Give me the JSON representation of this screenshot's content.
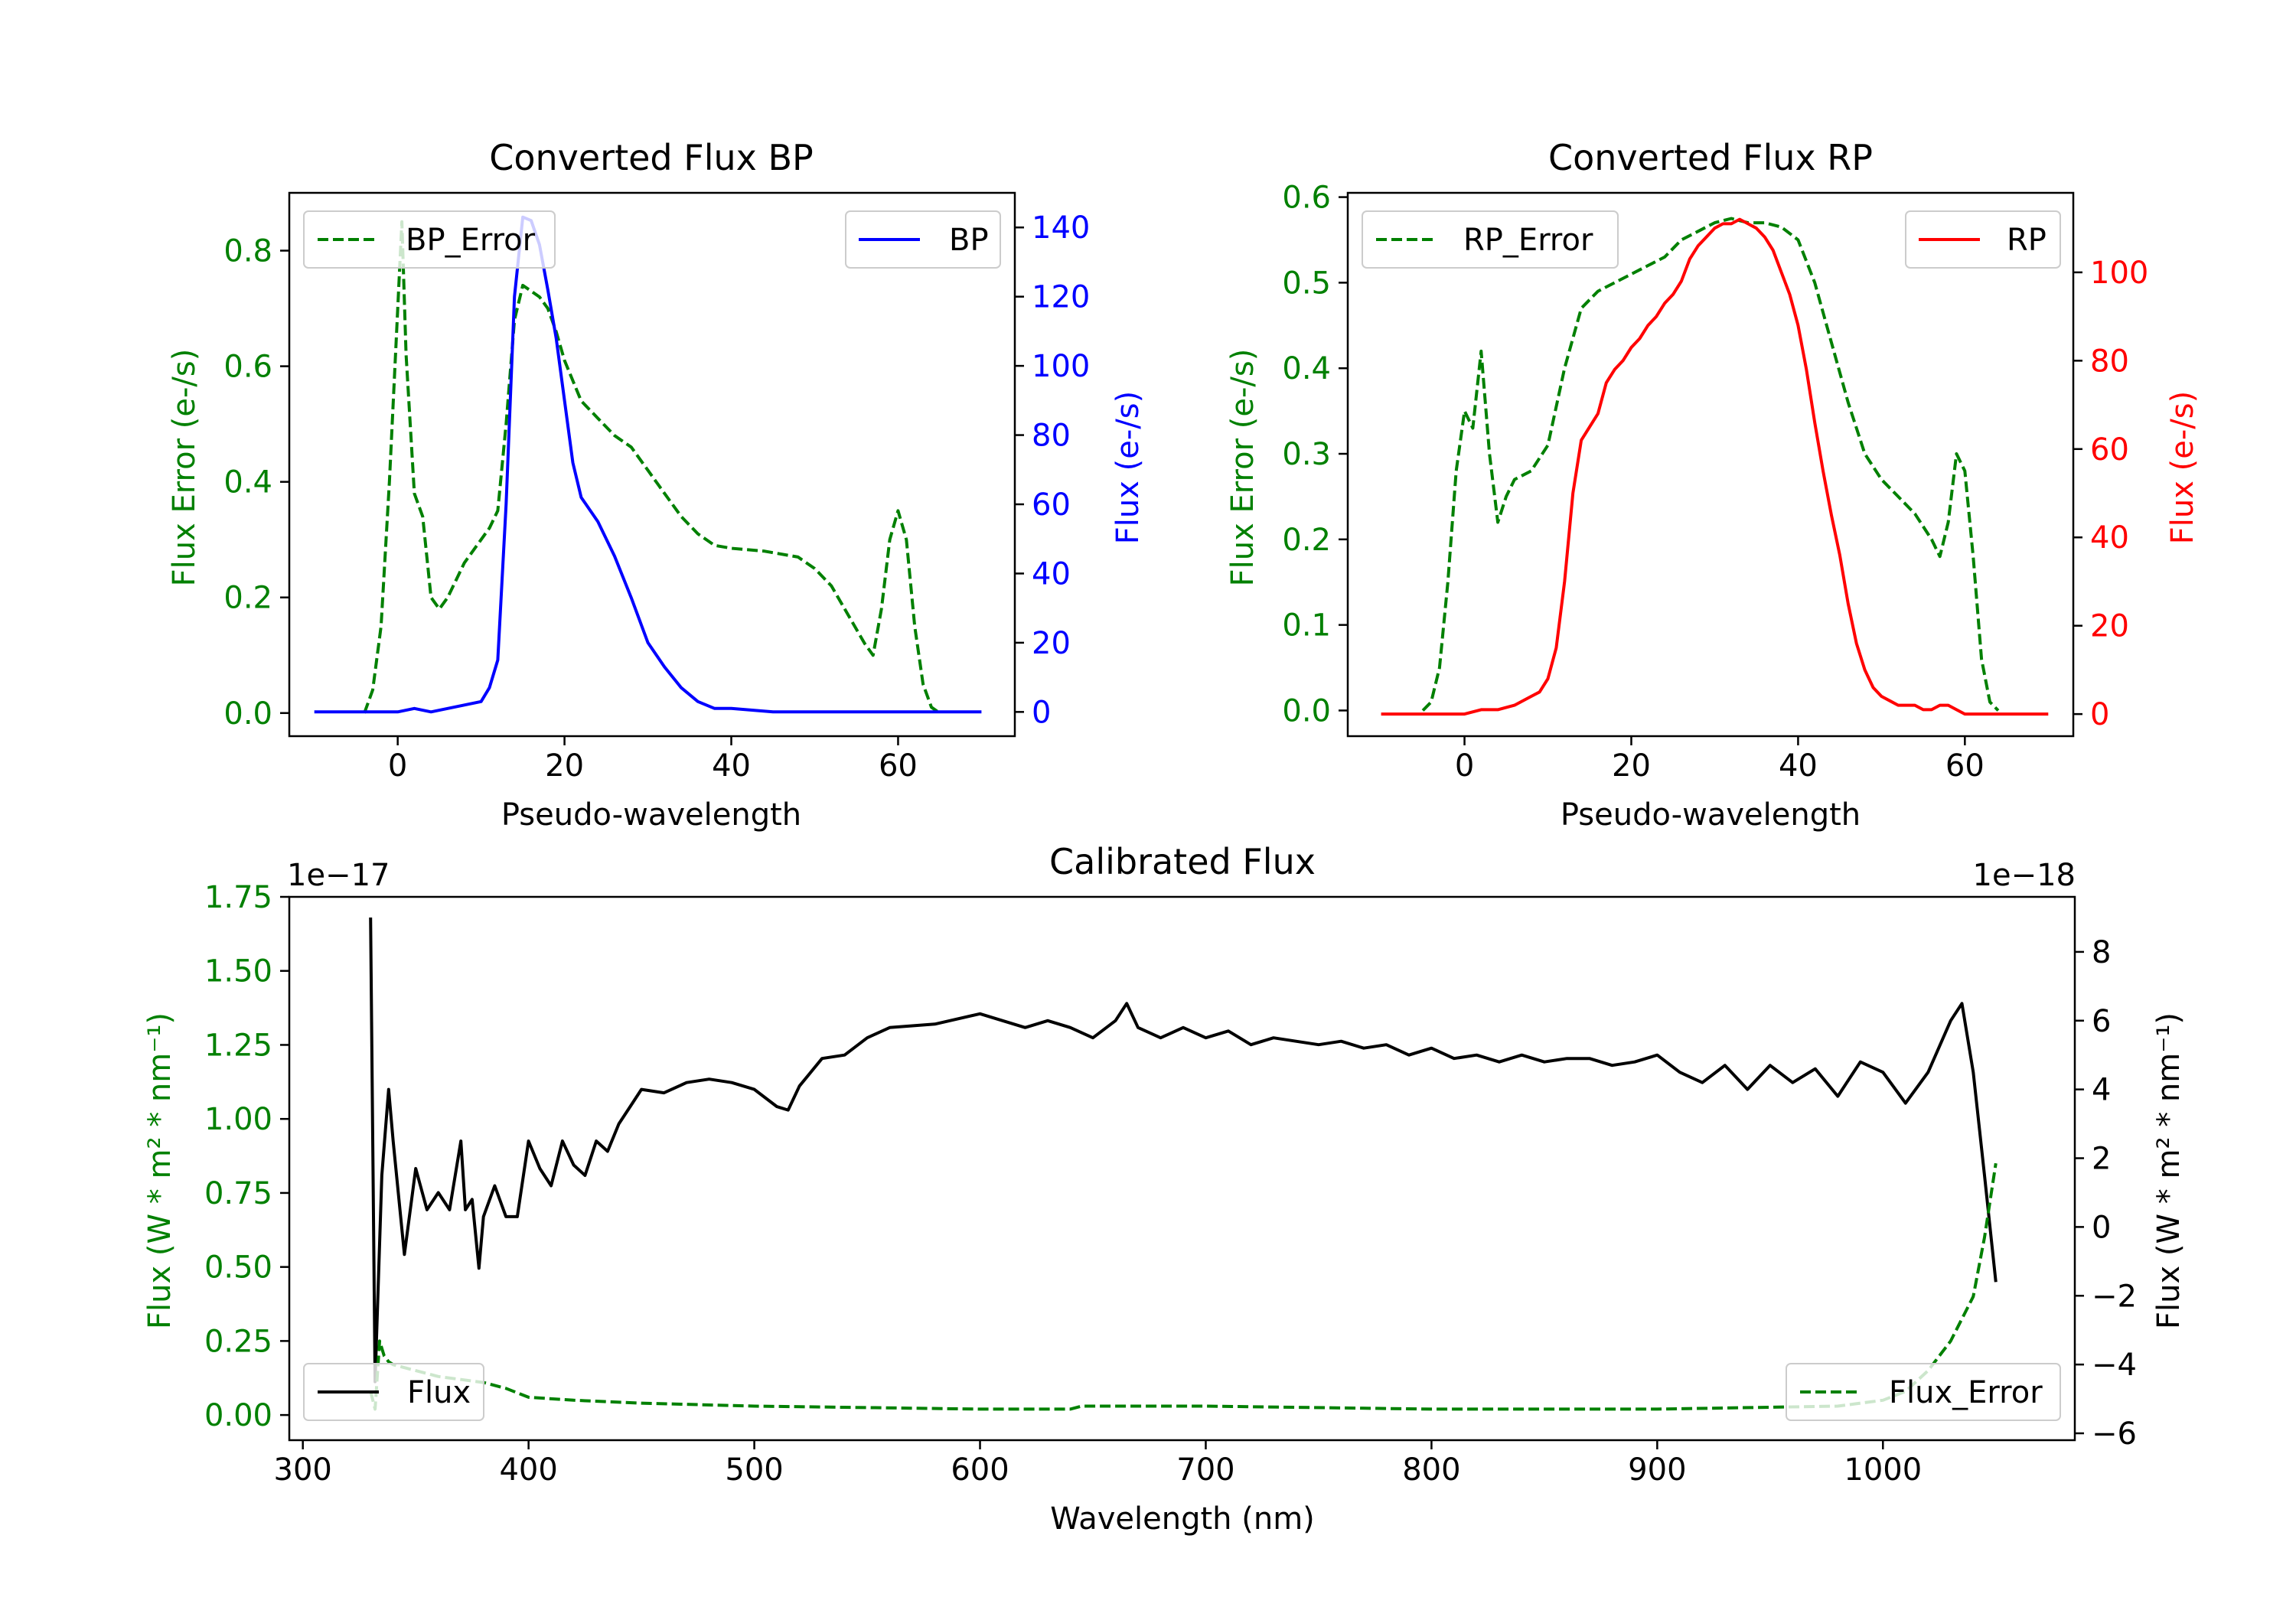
{
  "colors": {
    "error": "#008000",
    "bp": "#0000ff",
    "rp": "#ff0000",
    "flux": "#000000",
    "axis": "#000000",
    "legend_border": "#cccccc"
  },
  "chart_data": [
    {
      "id": "bp",
      "type": "line",
      "title": "Converted Flux BP",
      "xlabel": "Pseudo-wavelength",
      "ylabel_left": "Flux Error (e-/s)",
      "ylabel_right": "Flux (e-/s)",
      "xlim": [
        -13,
        74
      ],
      "ylim_left": [
        -0.04,
        0.9
      ],
      "ylim_right": [
        -7,
        150
      ],
      "xticks": [
        0,
        20,
        40,
        60
      ],
      "xtick_labels": [
        "0",
        "20",
        "40",
        "60"
      ],
      "yticks_left": [
        0.0,
        0.2,
        0.4,
        0.6,
        0.8
      ],
      "ytick_labels_left": [
        "0.0",
        "0.2",
        "0.4",
        "0.6",
        "0.8"
      ],
      "yticks_right": [
        0,
        20,
        40,
        60,
        80,
        100,
        120,
        140
      ],
      "ytick_labels_right": [
        "0",
        "20",
        "40",
        "60",
        "80",
        "100",
        "120",
        "140"
      ],
      "series": [
        {
          "name": "BP_Error",
          "legend_label": "BP_Error",
          "axis": "left",
          "style": "dashed",
          "color_key": "error",
          "legend": "upper left",
          "x": [
            -4,
            -3,
            -2,
            -1,
            0,
            0.5,
            1,
            2,
            3,
            4,
            5,
            6,
            7,
            8,
            9,
            10,
            11,
            12,
            13,
            14,
            15,
            16,
            17,
            18,
            19,
            20,
            22,
            24,
            26,
            28,
            30,
            32,
            34,
            36,
            38,
            40,
            44,
            48,
            50,
            52,
            54,
            56,
            57,
            58,
            59,
            60,
            61,
            62,
            63,
            64,
            65
          ],
          "y": [
            0.0,
            0.04,
            0.15,
            0.4,
            0.7,
            0.85,
            0.62,
            0.38,
            0.34,
            0.2,
            0.18,
            0.2,
            0.23,
            0.26,
            0.28,
            0.3,
            0.32,
            0.35,
            0.5,
            0.68,
            0.74,
            0.73,
            0.72,
            0.7,
            0.66,
            0.61,
            0.54,
            0.51,
            0.48,
            0.46,
            0.42,
            0.38,
            0.34,
            0.31,
            0.29,
            0.285,
            0.28,
            0.27,
            0.25,
            0.22,
            0.17,
            0.12,
            0.1,
            0.18,
            0.3,
            0.35,
            0.3,
            0.15,
            0.05,
            0.01,
            0.0
          ]
        },
        {
          "name": "BP",
          "legend_label": "BP",
          "axis": "right",
          "style": "solid",
          "color_key": "bp",
          "legend": "upper right",
          "x": [
            -10,
            -5,
            0,
            2,
            4,
            6,
            8,
            10,
            11,
            12,
            13,
            14,
            15,
            16,
            17,
            18,
            19,
            20,
            21,
            22,
            24,
            26,
            28,
            30,
            32,
            34,
            36,
            38,
            40,
            45,
            50,
            55,
            60,
            65,
            70
          ],
          "y": [
            0,
            0,
            0,
            1,
            0,
            1,
            2,
            3,
            7,
            15,
            60,
            120,
            143,
            142,
            135,
            122,
            108,
            90,
            72,
            62,
            55,
            45,
            33,
            20,
            13,
            7,
            3,
            1,
            1,
            0,
            0,
            0,
            0,
            0,
            0
          ]
        }
      ]
    },
    {
      "id": "rp",
      "type": "line",
      "title": "Converted Flux RP",
      "xlabel": "Pseudo-wavelength",
      "ylabel_left": "Flux Error (e-/s)",
      "ylabel_right": "Flux (e-/s)",
      "xlim": [
        -14,
        73
      ],
      "ylim_left": [
        -0.03,
        0.605
      ],
      "ylim_right": [
        -5,
        118
      ],
      "xticks": [
        0,
        20,
        40,
        60
      ],
      "xtick_labels": [
        "0",
        "20",
        "40",
        "60"
      ],
      "yticks_left": [
        0.0,
        0.1,
        0.2,
        0.3,
        0.4,
        0.5,
        0.6
      ],
      "ytick_labels_left": [
        "0.0",
        "0.1",
        "0.2",
        "0.3",
        "0.4",
        "0.5",
        "0.6"
      ],
      "yticks_right": [
        0,
        20,
        40,
        60,
        80,
        100
      ],
      "ytick_labels_right": [
        "0",
        "20",
        "40",
        "60",
        "80",
        "100"
      ],
      "series": [
        {
          "name": "RP_Error",
          "legend_label": "RP_Error",
          "axis": "left",
          "style": "dashed",
          "color_key": "error",
          "legend": "upper left",
          "x": [
            -5,
            -4,
            -3,
            -2,
            -1,
            0,
            1,
            2,
            3,
            4,
            5,
            6,
            8,
            10,
            12,
            14,
            16,
            18,
            20,
            22,
            24,
            26,
            28,
            30,
            32,
            34,
            36,
            38,
            40,
            42,
            44,
            46,
            48,
            50,
            52,
            54,
            56,
            57,
            58,
            59,
            60,
            61,
            62,
            63,
            64
          ],
          "y": [
            0.0,
            0.01,
            0.05,
            0.15,
            0.28,
            0.35,
            0.33,
            0.42,
            0.3,
            0.22,
            0.25,
            0.27,
            0.28,
            0.31,
            0.4,
            0.47,
            0.49,
            0.5,
            0.51,
            0.52,
            0.53,
            0.55,
            0.56,
            0.57,
            0.575,
            0.57,
            0.57,
            0.565,
            0.55,
            0.5,
            0.43,
            0.36,
            0.3,
            0.27,
            0.25,
            0.23,
            0.2,
            0.18,
            0.22,
            0.3,
            0.28,
            0.18,
            0.06,
            0.01,
            0.0
          ]
        },
        {
          "name": "RP",
          "legend_label": "RP",
          "axis": "right",
          "style": "solid",
          "color_key": "rp",
          "legend": "upper right",
          "x": [
            -10,
            -5,
            0,
            2,
            4,
            6,
            8,
            9,
            10,
            11,
            12,
            13,
            14,
            15,
            16,
            17,
            18,
            19,
            20,
            21,
            22,
            23,
            24,
            25,
            26,
            27,
            28,
            29,
            30,
            31,
            32,
            33,
            34,
            35,
            36,
            37,
            38,
            39,
            40,
            41,
            42,
            43,
            44,
            45,
            46,
            47,
            48,
            49,
            50,
            51,
            52,
            53,
            54,
            55,
            56,
            57,
            58,
            59,
            60,
            65,
            70
          ],
          "y": [
            0,
            0,
            0,
            1,
            1,
            2,
            4,
            5,
            8,
            15,
            30,
            50,
            62,
            65,
            68,
            75,
            78,
            80,
            83,
            85,
            88,
            90,
            93,
            95,
            98,
            103,
            106,
            108,
            110,
            111,
            111,
            112,
            111,
            110,
            108,
            105,
            100,
            95,
            88,
            78,
            66,
            55,
            45,
            36,
            25,
            16,
            10,
            6,
            4,
            3,
            2,
            2,
            2,
            1,
            1,
            2,
            2,
            1,
            0,
            0,
            0
          ]
        }
      ]
    },
    {
      "id": "cal",
      "type": "line",
      "title": "Calibrated Flux",
      "xlabel": "Wavelength (nm)",
      "ylabel_left": "Flux (W * m² * nm⁻¹)",
      "ylabel_right": "Flux (W * m² * nm⁻¹)",
      "offset_left": "1e−17",
      "offset_right": "1e−18",
      "xlim": [
        294,
        1085
      ],
      "ylim_left": [
        -0.085,
        1.75
      ],
      "ylim_right": [
        -6.2,
        9.6
      ],
      "xticks": [
        300,
        400,
        500,
        600,
        700,
        800,
        900,
        1000
      ],
      "xtick_labels": [
        "300",
        "400",
        "500",
        "600",
        "700",
        "800",
        "900",
        "1000"
      ],
      "yticks_left": [
        0.0,
        0.25,
        0.5,
        0.75,
        1.0,
        1.25,
        1.5,
        1.75
      ],
      "ytick_labels_left": [
        "0.00",
        "0.25",
        "0.50",
        "0.75",
        "1.00",
        "1.25",
        "1.50",
        "1.75"
      ],
      "yticks_right": [
        -6,
        -4,
        -2,
        0,
        2,
        4,
        6,
        8
      ],
      "ytick_labels_right": [
        "−6",
        "−4",
        "−2",
        "0",
        "2",
        "4",
        "6",
        "8"
      ],
      "series": [
        {
          "name": "Flux",
          "legend_label": "Flux",
          "axis": "right",
          "style": "solid",
          "color_key": "flux",
          "legend": "lower left",
          "x": [
            330,
            332,
            335,
            338,
            340,
            345,
            350,
            355,
            360,
            365,
            370,
            372,
            375,
            378,
            380,
            385,
            390,
            395,
            400,
            405,
            410,
            415,
            420,
            425,
            430,
            435,
            440,
            445,
            450,
            460,
            470,
            480,
            490,
            500,
            510,
            515,
            520,
            530,
            540,
            550,
            560,
            580,
            600,
            610,
            620,
            630,
            640,
            650,
            660,
            665,
            670,
            680,
            690,
            700,
            710,
            720,
            730,
            740,
            750,
            760,
            770,
            780,
            790,
            800,
            810,
            820,
            830,
            840,
            850,
            860,
            870,
            880,
            890,
            900,
            910,
            920,
            930,
            940,
            950,
            960,
            970,
            980,
            990,
            1000,
            1010,
            1020,
            1030,
            1035,
            1040,
            1045,
            1050
          ],
          "y": [
            9.0,
            -4.5,
            1.5,
            4.0,
            2.5,
            -0.8,
            1.7,
            0.5,
            1.0,
            0.5,
            2.5,
            0.5,
            0.8,
            -1.2,
            0.3,
            1.2,
            0.3,
            0.3,
            2.5,
            1.7,
            1.2,
            2.5,
            1.8,
            1.5,
            2.5,
            2.2,
            3.0,
            3.5,
            4.0,
            3.9,
            4.2,
            4.3,
            4.2,
            4.0,
            3.5,
            3.4,
            4.1,
            4.9,
            5.0,
            5.5,
            5.8,
            5.9,
            6.2,
            6.0,
            5.8,
            6.0,
            5.8,
            5.5,
            6.0,
            6.5,
            5.8,
            5.5,
            5.8,
            5.5,
            5.7,
            5.3,
            5.5,
            5.4,
            5.3,
            5.4,
            5.2,
            5.3,
            5.0,
            5.2,
            4.9,
            5.0,
            4.8,
            5.0,
            4.8,
            4.9,
            4.9,
            4.7,
            4.8,
            5.0,
            4.5,
            4.2,
            4.7,
            4.0,
            4.7,
            4.2,
            4.6,
            3.8,
            4.8,
            4.5,
            3.6,
            4.5,
            6.0,
            6.5,
            4.5,
            1.5,
            -1.6
          ]
        },
        {
          "name": "Flux_Error",
          "legend_label": "Flux_Error",
          "axis": "left",
          "style": "dashed",
          "color_key": "error",
          "legend": "lower right",
          "x": [
            330,
            332,
            334,
            336,
            338,
            340,
            345,
            350,
            360,
            370,
            380,
            390,
            400,
            420,
            450,
            500,
            550,
            600,
            640,
            645,
            700,
            800,
            900,
            980,
            1000,
            1010,
            1020,
            1030,
            1040,
            1045,
            1050
          ],
          "y": [
            0.08,
            0.02,
            0.25,
            0.2,
            0.18,
            0.17,
            0.16,
            0.15,
            0.13,
            0.12,
            0.11,
            0.09,
            0.06,
            0.05,
            0.04,
            0.03,
            0.025,
            0.02,
            0.02,
            0.03,
            0.03,
            0.02,
            0.02,
            0.03,
            0.05,
            0.08,
            0.15,
            0.25,
            0.4,
            0.6,
            0.85
          ]
        }
      ]
    }
  ]
}
